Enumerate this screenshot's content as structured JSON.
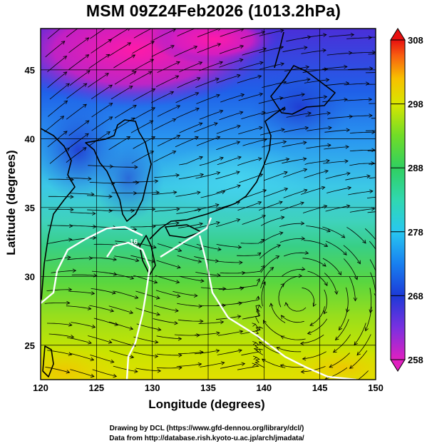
{
  "title": "MSM 09Z24Feb2026 (1013.2hPa)",
  "map": {
    "xlabel": "Longitude (degrees)",
    "ylabel": "Latitude  (degrees)",
    "lon_range": [
      120,
      150
    ],
    "lat_range": [
      22.5,
      48
    ],
    "lon_ticks": [
      "120",
      "125",
      "130",
      "135",
      "140",
      "145",
      "150"
    ],
    "lat_ticks": [
      "25",
      "30",
      "35",
      "40",
      "45"
    ],
    "grid": true,
    "layers": [
      "temperature shading",
      "streamlines",
      "coastlines",
      "white contour"
    ],
    "contour_label": "16",
    "colors": {
      "cold": "#e0109a",
      "mid": "#38c8e0",
      "warm": "#d8e000",
      "hot": "#f4c100"
    }
  },
  "colorbar": {
    "ticks": [
      "308",
      "298",
      "288",
      "278",
      "268",
      "258"
    ],
    "range": [
      258,
      308
    ],
    "orientation": "vertical",
    "placement": "right"
  },
  "credits": {
    "line1": "Drawing by DCL (https://www.gfd-dennou.org/library/dcl/)",
    "line2": "Data from http://database.rish.kyoto-u.ac.jp/arch/jmadata/"
  }
}
